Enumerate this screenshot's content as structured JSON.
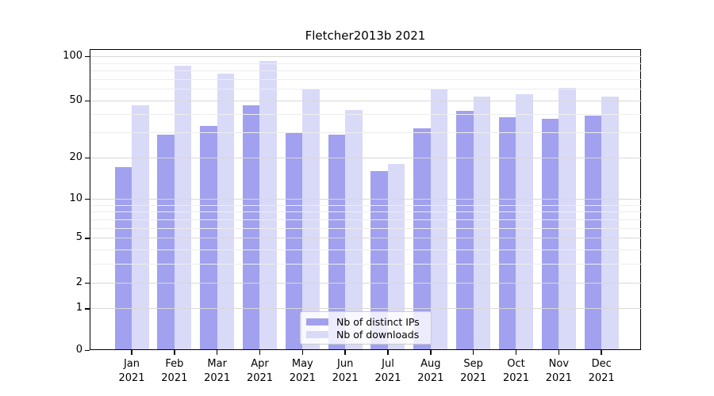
{
  "window": {
    "title": "Fletcher2013b 2021"
  },
  "chart_data": {
    "type": "bar",
    "title": "Fletcher2013b 2021",
    "categories": [
      "Jan",
      "Feb",
      "Mar",
      "Apr",
      "May",
      "Jun",
      "Jul",
      "Aug",
      "Sep",
      "Oct",
      "Nov",
      "Dec"
    ],
    "year": "2021",
    "series": [
      {
        "name": "Nb of distinct IPs",
        "color": "#a1a1ef",
        "values": [
          17,
          29,
          33,
          46,
          30,
          29,
          16,
          32,
          42,
          38,
          37,
          39
        ]
      },
      {
        "name": "Nb of downloads",
        "color": "#d9d9f8",
        "values": [
          46,
          86,
          76,
          93,
          60,
          43,
          18,
          60,
          53,
          55,
          61,
          53
        ]
      }
    ],
    "xlabel": "",
    "ylabel": "",
    "yscale": "log1p",
    "yticks": [
      0,
      1,
      2,
      5,
      10,
      20,
      50,
      100
    ],
    "yticks_minor": [
      3,
      4,
      6,
      7,
      8,
      9,
      30,
      40,
      60,
      70,
      80,
      90
    ],
    "ylim": [
      0,
      112
    ],
    "grid": true,
    "legend_position": "lower center",
    "colors": {
      "grid_major": "#d8d8d8",
      "grid_minor": "#ededed",
      "axis": "#000000",
      "legend_border": "#cccccc"
    }
  }
}
